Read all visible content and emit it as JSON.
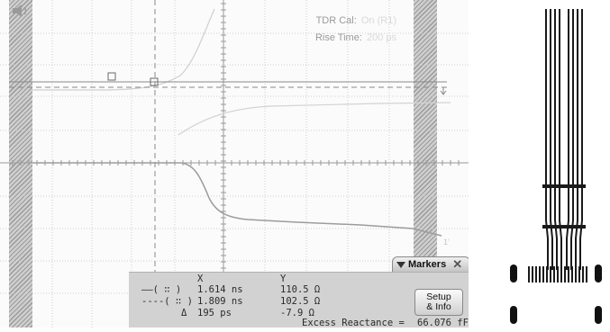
{
  "scope": {
    "tdr_cal_label": "TDR Cal:",
    "tdr_cal_value": "On (R1)",
    "rise_time_label": "Rise Time:",
    "rise_time_value": "200 ps",
    "speaker_icon": "speaker-icon",
    "trace_color": "#9c9c9c",
    "background": "#fbfbfb"
  },
  "markers": {
    "tab_label": "Markers",
    "col_x": "X",
    "col_y": "Y",
    "rows": [
      {
        "line": "solid",
        "x": "1.614 ns",
        "y": "110.5 Ω"
      },
      {
        "line": "dashed",
        "x": "1.809 ns",
        "y": "102.5 Ω"
      }
    ],
    "delta_symbol": "Δ",
    "delta_x": "195 ps",
    "delta_y": "-7.9 Ω",
    "excess_label": "Excess Reactance =",
    "excess_value": "66.076 fF",
    "setup_line1": "Setup",
    "setup_line2": "& Info"
  }
}
